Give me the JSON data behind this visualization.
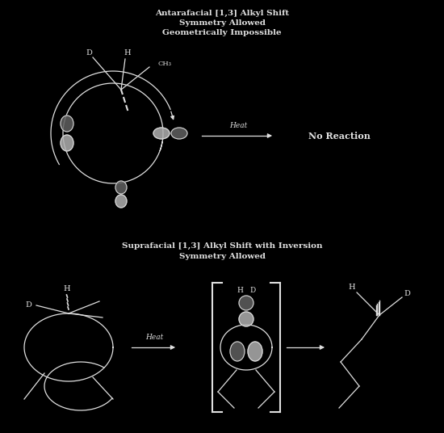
{
  "bg_color": "#000000",
  "fg_color": "#1a1a1a",
  "text_color": "#2a2a2a",
  "struct_color": "#2a2a2a",
  "title1_line1": "Antarafacial [1,3] Alkyl Shift",
  "title1_line2": "Symmetry Allowed",
  "title1_line3": "Geometrically Impossible",
  "title2_line1": "Suprafacial [1,3] Alkyl Shift with Inversion",
  "title2_line2": "Symmetry Allowed",
  "arrow_label": "Heat",
  "label_no_rxn": "No Reaction",
  "font_size_title": 7.5,
  "font_size_label": 7,
  "fig_width": 5.5,
  "fig_height": 5.36,
  "panel_bg": "#f0f0f0"
}
